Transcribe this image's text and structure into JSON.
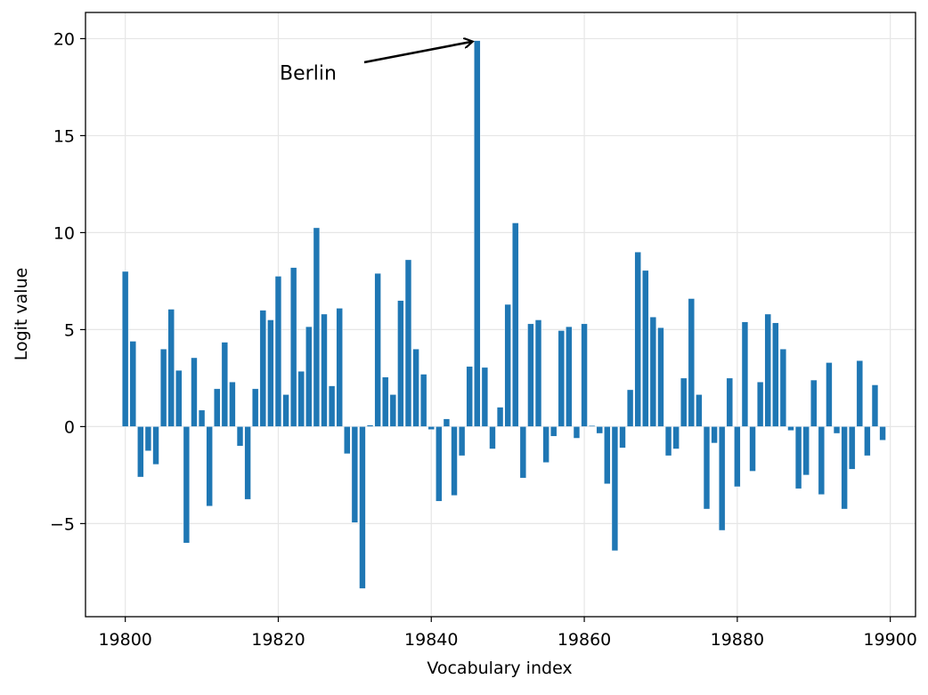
{
  "chart_data": {
    "type": "bar",
    "title": "",
    "xlabel": "Vocabulary index",
    "ylabel": "Logit value",
    "xlim": [
      19794.8,
      19903.3
    ],
    "ylim": [
      -9.8,
      21.35
    ],
    "xticks": [
      19800,
      19820,
      19840,
      19860,
      19880,
      19900
    ],
    "xtick_labels": [
      "19800",
      "19820",
      "19840",
      "19860",
      "19880",
      "19900"
    ],
    "yticks": [
      -5,
      0,
      5,
      10,
      15,
      20
    ],
    "ytick_labels": [
      "−5",
      "0",
      "5",
      "10",
      "15",
      "20"
    ],
    "grid": true,
    "bar_color": "#1f77b4",
    "x_start": 19800,
    "values": [
      8.0,
      4.4,
      -2.6,
      -1.25,
      -1.95,
      4.0,
      6.05,
      2.9,
      -6.0,
      3.55,
      0.85,
      -4.1,
      1.95,
      4.35,
      2.3,
      -1.0,
      -3.75,
      1.95,
      6.0,
      5.5,
      7.75,
      1.65,
      8.2,
      2.85,
      5.15,
      10.25,
      5.8,
      2.1,
      6.1,
      -1.4,
      -4.95,
      -8.35,
      0.08,
      7.9,
      2.55,
      1.65,
      6.5,
      8.6,
      4.0,
      2.7,
      -0.15,
      -3.85,
      0.4,
      -3.55,
      -1.5,
      3.1,
      19.9,
      3.05,
      -1.15,
      1.0,
      6.3,
      10.5,
      -2.65,
      5.3,
      5.5,
      -1.85,
      -0.5,
      4.95,
      5.15,
      -0.6,
      5.3,
      0.05,
      -0.35,
      -2.95,
      -6.4,
      -1.1,
      1.9,
      9.0,
      8.05,
      5.65,
      5.1,
      -1.5,
      -1.15,
      2.5,
      6.6,
      1.65,
      -4.25,
      -0.85,
      -5.35,
      2.5,
      -3.1,
      5.4,
      -2.3,
      2.3,
      5.8,
      5.35,
      4.0,
      -0.2,
      -3.2,
      -2.5,
      2.4,
      -3.5,
      3.3,
      -0.35,
      -4.25,
      -2.2,
      3.4,
      -1.5,
      2.15,
      -0.7
    ],
    "annotations": [
      {
        "text": "Berlin",
        "x": 19846,
        "y": 19.9,
        "text_pos": {
          "x": 19821,
          "y": 18.2
        },
        "arrow": true
      }
    ],
    "legend": null
  }
}
